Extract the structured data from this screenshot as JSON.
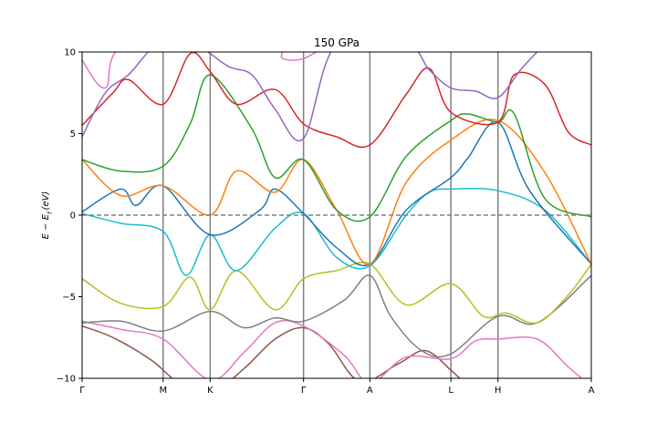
{
  "chart_data": {
    "type": "line",
    "title": "150 GPa",
    "ylabel": "E − E_f (eV)",
    "ylabel_parts": {
      "main": "E − E",
      "sub": "f",
      "unit": "(eV)"
    },
    "xlabel": "",
    "ylim": [
      -10,
      10
    ],
    "yticks": [
      -10,
      -5,
      0,
      5,
      10
    ],
    "xlim": [
      0,
      6.6
    ],
    "kpoints": [
      {
        "label": "Γ",
        "x": 0.0
      },
      {
        "label": "M",
        "x": 1.05
      },
      {
        "label": "K",
        "x": 1.66
      },
      {
        "label": "Γ",
        "x": 2.87
      },
      {
        "label": "A",
        "x": 3.73
      },
      {
        "label": "L",
        "x": 4.78
      },
      {
        "label": "H",
        "x": 5.39
      },
      {
        "label": "A",
        "x": 6.6
      }
    ],
    "fermi_level": 0,
    "series": [
      {
        "name": "band-1-brown",
        "color": "#8c564b",
        "points": [
          [
            0,
            -6.8
          ],
          [
            0.4,
            -7.5
          ],
          [
            0.9,
            -8.9
          ],
          [
            1.3,
            -10.5
          ],
          [
            1.66,
            -11
          ],
          [
            2.1,
            -9.4
          ],
          [
            2.5,
            -7.6
          ],
          [
            2.87,
            -6.9
          ],
          [
            3.2,
            -7.9
          ],
          [
            3.6,
            -10.2
          ],
          [
            4.1,
            -9.1
          ],
          [
            4.45,
            -8.3
          ],
          [
            4.78,
            -9.5
          ],
          [
            5.0,
            -10.5
          ]
        ]
      },
      {
        "name": "band-2-pink",
        "color": "#e377c2",
        "points": [
          [
            0,
            -6.5
          ],
          [
            0.5,
            -7.0
          ],
          [
            1.05,
            -7.6
          ],
          [
            1.66,
            -10.1
          ],
          [
            2.1,
            -8.4
          ],
          [
            2.5,
            -6.6
          ],
          [
            2.87,
            -6.8
          ],
          [
            3.4,
            -8.6
          ],
          [
            3.73,
            -10.3
          ],
          [
            4.2,
            -8.7
          ],
          [
            4.78,
            -8.8
          ],
          [
            5.1,
            -7.7
          ],
          [
            5.39,
            -7.6
          ],
          [
            5.9,
            -7.6
          ],
          [
            6.3,
            -9.3
          ],
          [
            6.6,
            -10.5
          ]
        ]
      },
      {
        "name": "band-3-gray",
        "color": "#7f7f7f",
        "points": [
          [
            0,
            -6.6
          ],
          [
            0.5,
            -6.5
          ],
          [
            1.05,
            -7.1
          ],
          [
            1.66,
            -5.9
          ],
          [
            2.1,
            -6.9
          ],
          [
            2.5,
            -6.3
          ],
          [
            2.87,
            -6.5
          ],
          [
            3.4,
            -5.2
          ],
          [
            3.73,
            -3.7
          ],
          [
            4.0,
            -6.2
          ],
          [
            4.4,
            -8.3
          ],
          [
            4.78,
            -8.5
          ],
          [
            5.39,
            -6.2
          ],
          [
            5.9,
            -6.6
          ],
          [
            6.6,
            -3.7
          ]
        ]
      },
      {
        "name": "band-4-olive",
        "color": "#bcbd22",
        "points": [
          [
            0,
            -3.9
          ],
          [
            0.5,
            -5.4
          ],
          [
            1.05,
            -5.6
          ],
          [
            1.4,
            -3.8
          ],
          [
            1.66,
            -5.8
          ],
          [
            2.0,
            -3.4
          ],
          [
            2.5,
            -5.8
          ],
          [
            2.87,
            -3.9
          ],
          [
            3.3,
            -3.4
          ],
          [
            3.73,
            -3.0
          ],
          [
            4.2,
            -5.5
          ],
          [
            4.78,
            -4.2
          ],
          [
            5.2,
            -6.2
          ],
          [
            5.5,
            -6.0
          ],
          [
            5.9,
            -6.6
          ],
          [
            6.3,
            -4.9
          ],
          [
            6.6,
            -3.0
          ]
        ]
      },
      {
        "name": "band-5-cyan",
        "color": "#17becf",
        "points": [
          [
            0,
            0.1
          ],
          [
            0.5,
            -0.5
          ],
          [
            1.05,
            -1.0
          ],
          [
            1.35,
            -3.7
          ],
          [
            1.66,
            -1.2
          ],
          [
            2.0,
            -3.4
          ],
          [
            2.5,
            -0.8
          ],
          [
            2.87,
            0.1
          ],
          [
            3.3,
            -2.6
          ],
          [
            3.73,
            -3.1
          ],
          [
            4.2,
            0.0
          ],
          [
            4.5,
            1.4
          ],
          [
            4.78,
            1.6
          ],
          [
            5.39,
            1.5
          ],
          [
            6.0,
            0.3
          ],
          [
            6.6,
            -3.0
          ]
        ]
      },
      {
        "name": "band-6-blue",
        "color": "#1f77b4",
        "points": [
          [
            0,
            0.2
          ],
          [
            0.5,
            1.6
          ],
          [
            0.7,
            0.6
          ],
          [
            1.05,
            1.8
          ],
          [
            1.66,
            -1.2
          ],
          [
            2.3,
            0.3
          ],
          [
            2.5,
            1.6
          ],
          [
            2.87,
            0.1
          ],
          [
            3.3,
            -2.0
          ],
          [
            3.73,
            -3.0
          ],
          [
            4.2,
            0.3
          ],
          [
            4.78,
            2.3
          ],
          [
            5.0,
            3.5
          ],
          [
            5.39,
            5.7
          ],
          [
            5.8,
            1.5
          ],
          [
            6.6,
            -3.0
          ]
        ]
      },
      {
        "name": "band-7-orange",
        "color": "#ff7f0e",
        "points": [
          [
            0,
            3.4
          ],
          [
            0.5,
            1.2
          ],
          [
            1.05,
            1.8
          ],
          [
            1.66,
            0.0
          ],
          [
            2.0,
            2.7
          ],
          [
            2.5,
            1.4
          ],
          [
            2.87,
            3.4
          ],
          [
            3.3,
            0.3
          ],
          [
            3.73,
            -3.0
          ],
          [
            4.2,
            2.0
          ],
          [
            4.78,
            4.6
          ],
          [
            5.39,
            5.8
          ],
          [
            6.0,
            2.6
          ],
          [
            6.6,
            -3.0
          ]
        ]
      },
      {
        "name": "band-8-green",
        "color": "#2ca02c",
        "points": [
          [
            0,
            3.4
          ],
          [
            0.5,
            2.7
          ],
          [
            1.05,
            3.0
          ],
          [
            1.4,
            5.6
          ],
          [
            1.66,
            8.6
          ],
          [
            2.2,
            5.3
          ],
          [
            2.5,
            2.3
          ],
          [
            2.87,
            3.4
          ],
          [
            3.3,
            0.3
          ],
          [
            3.73,
            -0.1
          ],
          [
            4.2,
            3.6
          ],
          [
            4.78,
            5.8
          ],
          [
            5.0,
            6.2
          ],
          [
            5.39,
            5.7
          ],
          [
            5.6,
            6.2
          ],
          [
            6.0,
            1.0
          ],
          [
            6.6,
            -0.1
          ]
        ]
      },
      {
        "name": "band-9-red",
        "color": "#d62728",
        "points": [
          [
            0,
            5.5
          ],
          [
            0.4,
            7.5
          ],
          [
            0.6,
            8.3
          ],
          [
            1.05,
            6.8
          ],
          [
            1.4,
            9.9
          ],
          [
            1.66,
            8.8
          ],
          [
            2.0,
            6.8
          ],
          [
            2.5,
            7.7
          ],
          [
            2.87,
            5.6
          ],
          [
            3.3,
            4.8
          ],
          [
            3.73,
            4.3
          ],
          [
            4.2,
            7.4
          ],
          [
            4.5,
            9.0
          ],
          [
            4.78,
            6.3
          ],
          [
            5.39,
            5.7
          ],
          [
            5.6,
            8.6
          ],
          [
            6.0,
            8.0
          ],
          [
            6.3,
            5.1
          ],
          [
            6.6,
            4.3
          ]
        ]
      },
      {
        "name": "band-10-purple",
        "color": "#9467bd",
        "points": [
          [
            0,
            4.8
          ],
          [
            0.3,
            7.5
          ],
          [
            0.6,
            8.6
          ],
          [
            1.0,
            10.5
          ],
          [
            1.5,
            10.3
          ],
          [
            1.9,
            9.1
          ],
          [
            2.2,
            8.6
          ],
          [
            2.5,
            6.5
          ],
          [
            2.87,
            4.7
          ],
          [
            3.3,
            10.5
          ],
          [
            4.2,
            10.5
          ],
          [
            4.5,
            8.9
          ],
          [
            4.78,
            7.8
          ],
          [
            5.1,
            7.6
          ],
          [
            5.39,
            7.2
          ],
          [
            5.7,
            9.0
          ],
          [
            6.0,
            10.5
          ]
        ]
      },
      {
        "name": "band-11-pink-upper",
        "color": "#e377c2",
        "points": [
          [
            0,
            9.5
          ],
          [
            0.3,
            7.8
          ],
          [
            0.6,
            10.5
          ],
          [
            2.4,
            10.5
          ],
          [
            2.6,
            9.6
          ],
          [
            2.87,
            9.6
          ],
          [
            3.2,
            10.5
          ]
        ]
      }
    ]
  }
}
